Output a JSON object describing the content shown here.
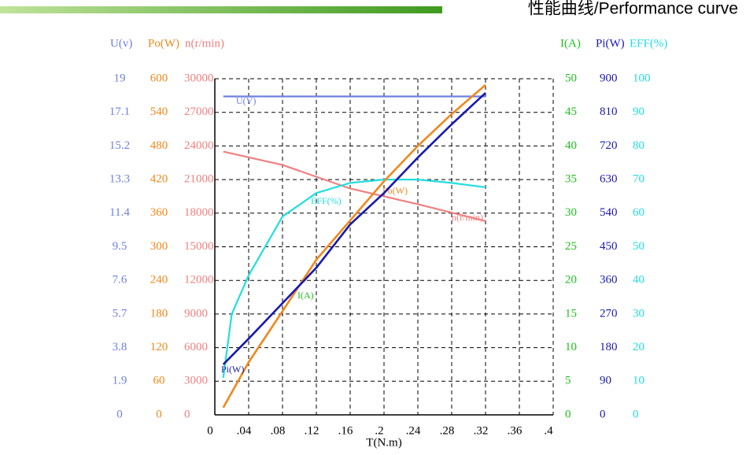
{
  "chart_data": {
    "type": "line",
    "title": "性能曲线/Performance curve",
    "xlabel": "T(N.m)",
    "xlim": [
      0,
      0.4
    ],
    "xticks": [
      0,
      {
        "value": 0.04,
        "label": ".04"
      },
      {
        "value": 0.08,
        "label": ".08"
      },
      {
        "value": 0.12,
        "label": ".12"
      },
      {
        "value": 0.16,
        "label": ".16"
      },
      {
        "value": 0.2,
        "label": ".2"
      },
      {
        "value": 0.24,
        "label": ".24"
      },
      {
        "value": 0.28,
        "label": ".28"
      },
      {
        "value": 0.32,
        "label": ".32"
      },
      {
        "value": 0.36,
        "label": ".36"
      },
      {
        "value": 0.4,
        "label": ".4"
      }
    ],
    "grid": true,
    "axes": [
      {
        "title": "U(v)",
        "color": "#7080e0",
        "lim": [
          0,
          19
        ],
        "ticks": [
          0,
          1.9,
          3.8,
          5.7,
          7.6,
          9.5,
          11.4,
          13.3,
          15.2,
          17.1,
          19
        ]
      },
      {
        "title": "Po(W)",
        "color": "#f0881c",
        "lim": [
          0,
          600
        ],
        "ticks": [
          0,
          60,
          120,
          180,
          240,
          300,
          360,
          420,
          480,
          540,
          600
        ]
      },
      {
        "title": "n(r/min)",
        "color": "#f08080",
        "lim": [
          0,
          30000
        ],
        "ticks": [
          0,
          3000,
          6000,
          9000,
          12000,
          15000,
          18000,
          21000,
          24000,
          27000,
          30000
        ]
      },
      {
        "title": "I(A)",
        "color": "#22c022",
        "lim": [
          0,
          50
        ],
        "ticks": [
          0,
          5,
          10,
          15,
          20,
          25,
          30,
          35,
          40,
          45,
          50
        ]
      },
      {
        "title": "Pi(W)",
        "color": "#1a1ab0",
        "lim": [
          0,
          900
        ],
        "ticks": [
          0,
          90,
          180,
          270,
          360,
          450,
          540,
          630,
          720,
          810,
          900
        ]
      },
      {
        "title": "EFF(%)",
        "color": "#22dde0",
        "lim": [
          0,
          100
        ],
        "ticks": [
          0,
          10,
          20,
          30,
          40,
          50,
          60,
          70,
          80,
          90,
          100
        ]
      }
    ],
    "series": [
      {
        "name": "U(V)",
        "color": "#7080e0",
        "axis": 0,
        "x": [
          0.01,
          0.32
        ],
        "values": [
          18,
          18
        ]
      },
      {
        "name": "n(r/min)",
        "color": "#f08080",
        "axis": 2,
        "x": [
          0.01,
          0.08,
          0.16,
          0.24,
          0.32
        ],
        "values": [
          23500,
          22300,
          20200,
          18800,
          17300
        ]
      },
      {
        "name": "EFF(%)",
        "color": "#22dde0",
        "axis": 5,
        "x": [
          0.01,
          0.02,
          0.04,
          0.08,
          0.12,
          0.16,
          0.2,
          0.24,
          0.28,
          0.32
        ],
        "values": [
          11,
          30,
          41.5,
          59,
          66,
          69,
          70,
          70,
          69,
          67.7
        ]
      },
      {
        "name": "I(A)",
        "color": "#22c022",
        "axis": 3,
        "x": [
          0.01,
          0.04,
          0.08,
          0.12,
          0.16,
          0.2,
          0.24,
          0.28,
          0.32
        ],
        "values": [
          7.5,
          11.3,
          16.6,
          21.9,
          28.3,
          33,
          38.3,
          43.2,
          47.9
        ]
      },
      {
        "name": "Po(W)",
        "color": "#f0881c",
        "axis": 1,
        "x": [
          0.01,
          0.04,
          0.08,
          0.12,
          0.16,
          0.2,
          0.24,
          0.28,
          0.32
        ],
        "values": [
          13,
          94,
          185,
          277,
          347,
          417,
          480,
          537,
          589
        ]
      },
      {
        "name": "Pi(W)",
        "color": "#1a1ab0",
        "axis": 4,
        "x": [
          0.01,
          0.04,
          0.08,
          0.12,
          0.16,
          0.2,
          0.24,
          0.28,
          0.32
        ],
        "values": [
          135,
          204,
          299,
          394,
          510,
          594,
          689,
          778,
          862
        ]
      }
    ]
  }
}
